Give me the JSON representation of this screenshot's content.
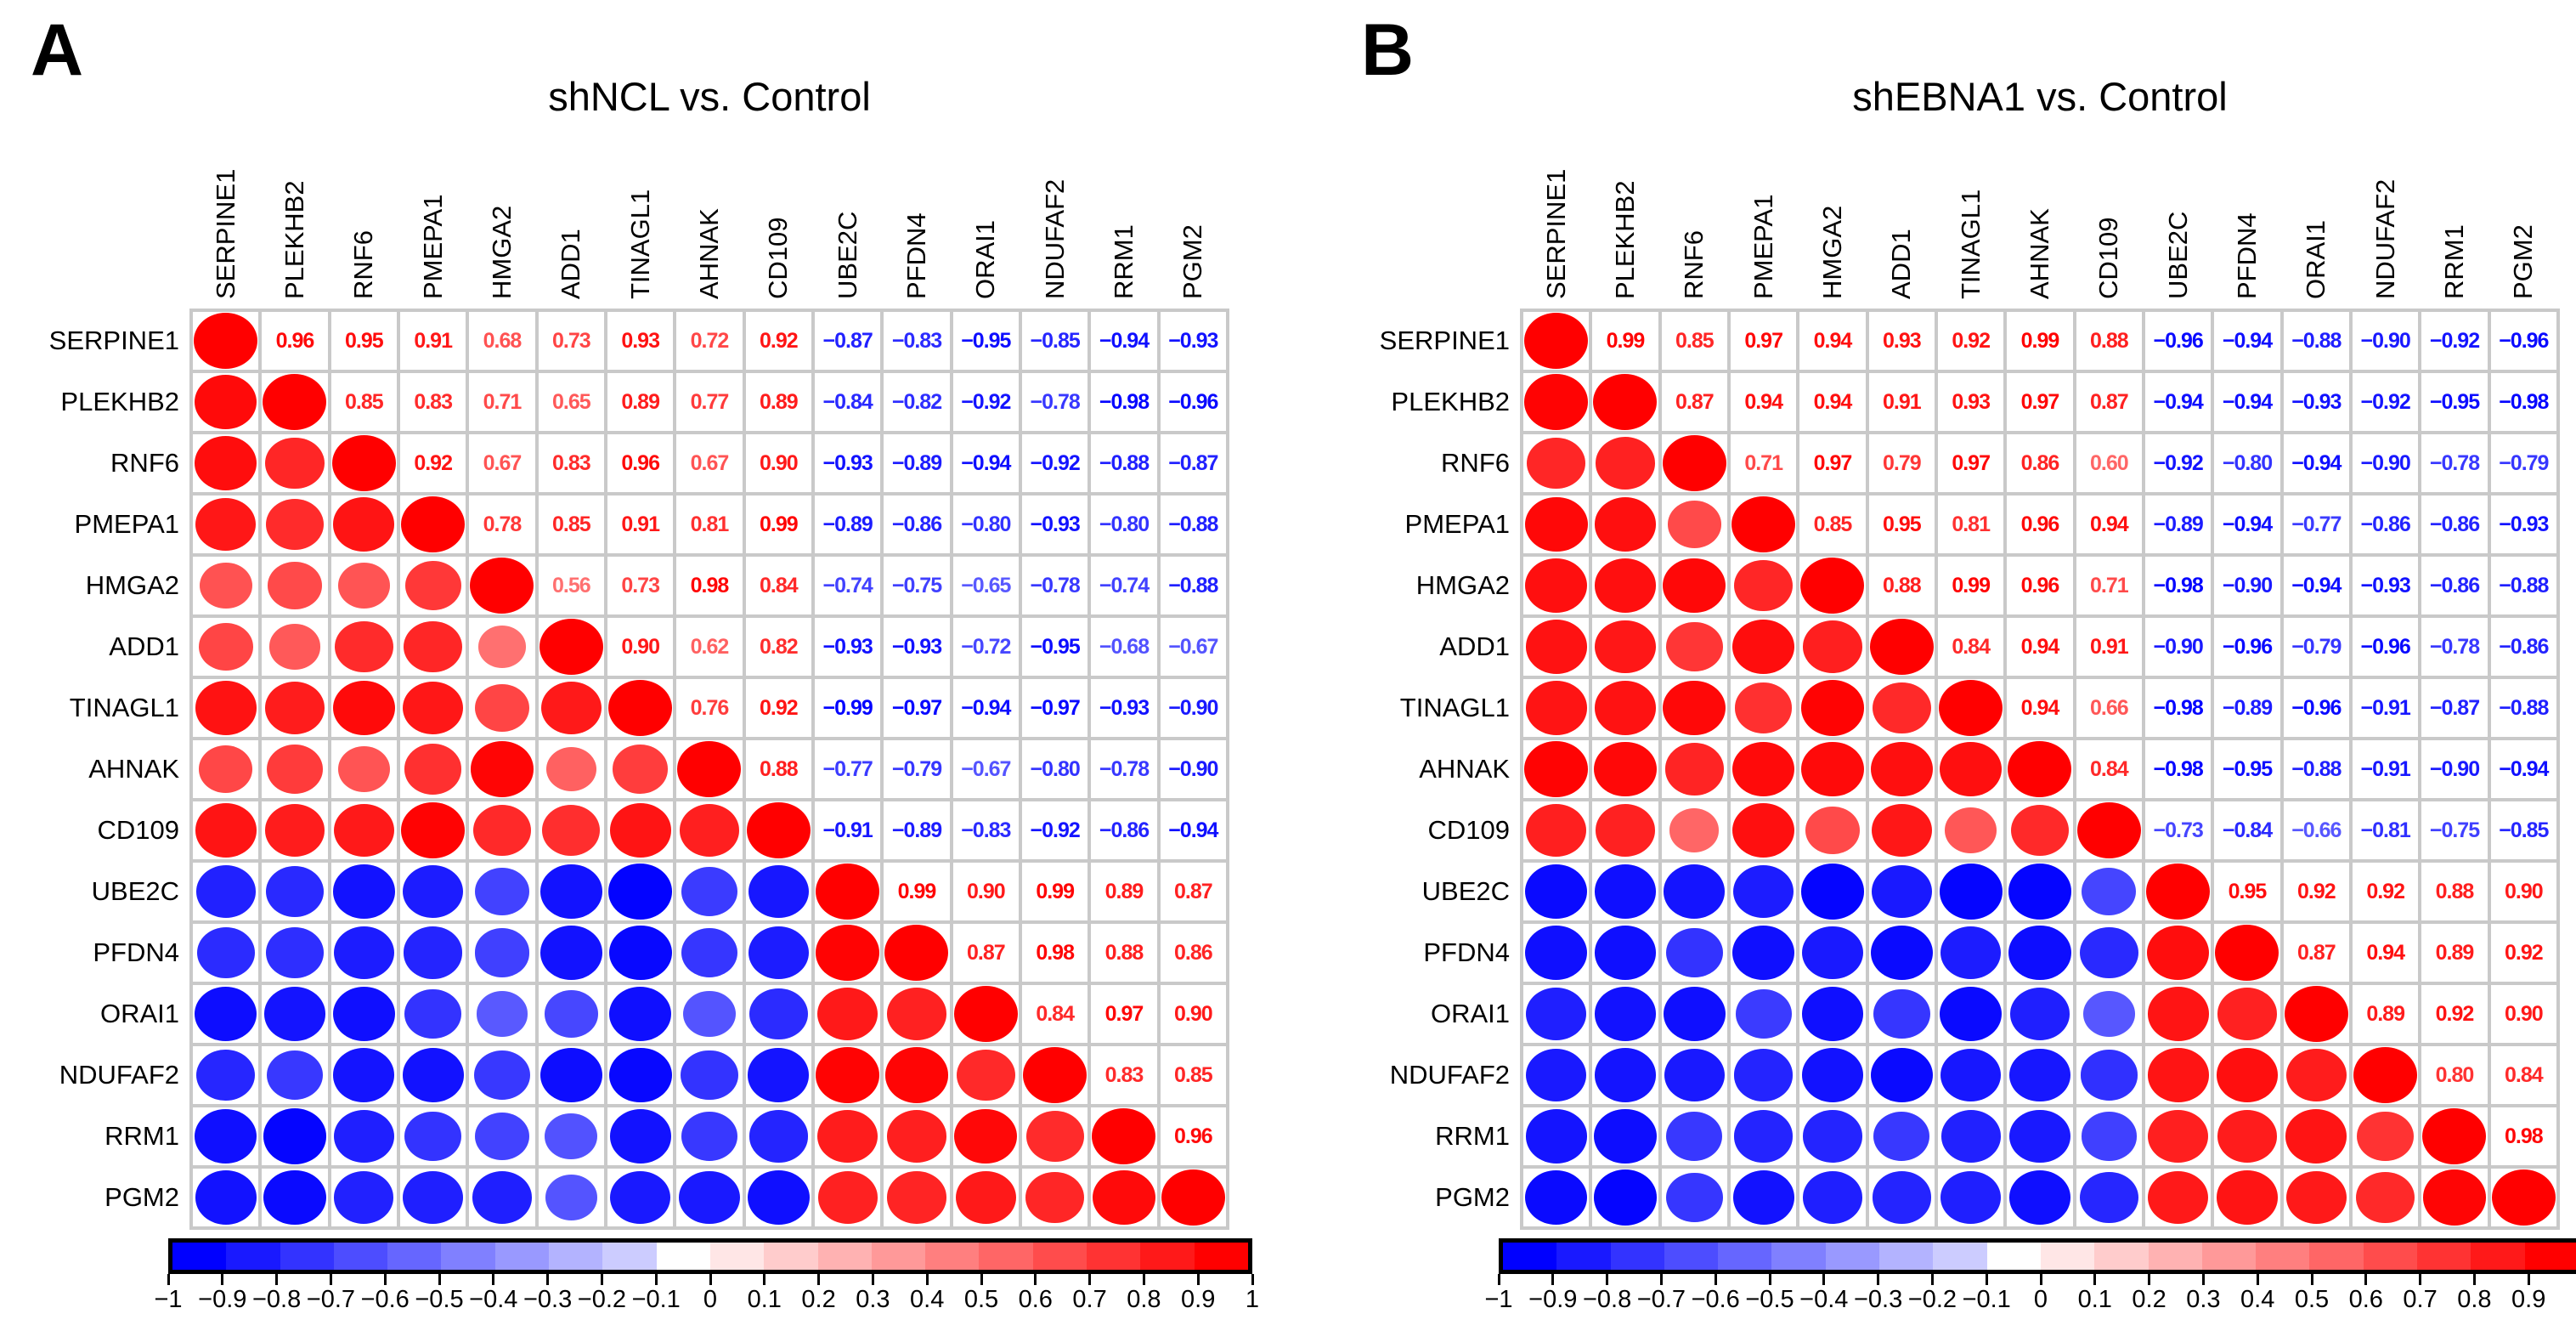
{
  "colors": {
    "positive_max": "#ff0000",
    "negative_max": "#0000ff",
    "zero": "#ffffff",
    "grid_line": "#c9c9c9",
    "text": "#000000",
    "background": "#ffffff"
  },
  "colorbar": {
    "min": -1,
    "max": 1,
    "step": 0.1,
    "segments": 20,
    "tick_labels": [
      "−1",
      "−0.9",
      "−0.8",
      "−0.7",
      "−0.6",
      "−0.5",
      "−0.4",
      "−0.3",
      "−0.2",
      "−0.1",
      "0",
      "0.1",
      "0.2",
      "0.3",
      "0.4",
      "0.5",
      "0.6",
      "0.7",
      "0.8",
      "0.9",
      "1"
    ]
  },
  "chart_data": [
    {
      "type": "heatmap",
      "subtype": "correlation-matrix",
      "panel_label": "A",
      "title": "shNCL vs. Control",
      "legend_position": "bottom",
      "value_range": [
        -1,
        1
      ],
      "labels": [
        "SERPINE1",
        "PLEKHB2",
        "RNF6",
        "PMEPA1",
        "HMGA2",
        "ADD1",
        "TINAGL1",
        "AHNAK",
        "CD109",
        "UBE2C",
        "PFDN4",
        "ORAI1",
        "NDUFAF2",
        "RRM1",
        "PGM2"
      ],
      "diagonal_value": 1,
      "upper_triangle": [
        [
          0.96,
          0.95,
          0.91,
          0.68,
          0.73,
          0.93,
          0.72,
          0.92,
          -0.87,
          -0.83,
          -0.95,
          -0.85,
          -0.94,
          -0.93
        ],
        [
          0.85,
          0.83,
          0.71,
          0.65,
          0.89,
          0.77,
          0.89,
          -0.84,
          -0.82,
          -0.92,
          -0.78,
          -0.98,
          -0.96
        ],
        [
          0.92,
          0.67,
          0.83,
          0.96,
          0.67,
          0.9,
          -0.93,
          -0.89,
          -0.94,
          -0.92,
          -0.88,
          -0.87
        ],
        [
          0.78,
          0.85,
          0.91,
          0.81,
          0.99,
          -0.89,
          -0.86,
          -0.8,
          -0.93,
          -0.8,
          -0.88
        ],
        [
          0.56,
          0.73,
          0.98,
          0.84,
          -0.74,
          -0.75,
          -0.65,
          -0.78,
          -0.74,
          -0.88
        ],
        [
          0.9,
          0.62,
          0.82,
          -0.93,
          -0.93,
          -0.72,
          -0.95,
          -0.68,
          -0.67
        ],
        [
          0.76,
          0.92,
          -0.99,
          -0.97,
          -0.94,
          -0.97,
          -0.93,
          -0.9
        ],
        [
          0.88,
          -0.77,
          -0.79,
          -0.67,
          -0.8,
          -0.78,
          -0.9
        ],
        [
          -0.91,
          -0.89,
          -0.83,
          -0.92,
          -0.86,
          -0.94
        ],
        [
          0.99,
          0.9,
          0.99,
          0.89,
          0.87
        ],
        [
          0.87,
          0.98,
          0.88,
          0.86
        ],
        [
          0.84,
          0.97,
          0.9
        ],
        [
          0.83,
          0.85
        ],
        [
          0.96
        ]
      ]
    },
    {
      "type": "heatmap",
      "subtype": "correlation-matrix",
      "panel_label": "B",
      "title": "shEBNA1 vs. Control",
      "legend_position": "bottom",
      "value_range": [
        -1,
        1
      ],
      "labels": [
        "SERPINE1",
        "PLEKHB2",
        "RNF6",
        "PMEPA1",
        "HMGA2",
        "ADD1",
        "TINAGL1",
        "AHNAK",
        "CD109",
        "UBE2C",
        "PFDN4",
        "ORAI1",
        "NDUFAF2",
        "RRM1",
        "PGM2"
      ],
      "diagonal_value": 1,
      "upper_triangle": [
        [
          0.99,
          0.85,
          0.97,
          0.94,
          0.93,
          0.92,
          0.99,
          0.88,
          -0.96,
          -0.94,
          -0.88,
          -0.9,
          -0.92,
          -0.96
        ],
        [
          0.87,
          0.94,
          0.94,
          0.91,
          0.93,
          0.97,
          0.87,
          -0.94,
          -0.94,
          -0.93,
          -0.92,
          -0.95,
          -0.98
        ],
        [
          0.71,
          0.97,
          0.79,
          0.97,
          0.86,
          0.6,
          -0.92,
          -0.8,
          -0.94,
          -0.9,
          -0.78,
          -0.79
        ],
        [
          0.85,
          0.95,
          0.81,
          0.96,
          0.94,
          -0.89,
          -0.94,
          -0.77,
          -0.86,
          -0.86,
          -0.93
        ],
        [
          0.88,
          0.99,
          0.96,
          0.71,
          -0.98,
          -0.9,
          -0.94,
          -0.93,
          -0.86,
          -0.88
        ],
        [
          0.84,
          0.94,
          0.91,
          -0.9,
          -0.96,
          -0.79,
          -0.96,
          -0.78,
          -0.86
        ],
        [
          0.94,
          0.66,
          -0.98,
          -0.89,
          -0.96,
          -0.91,
          -0.87,
          -0.88
        ],
        [
          0.84,
          -0.98,
          -0.95,
          -0.88,
          -0.91,
          -0.9,
          -0.94
        ],
        [
          -0.73,
          -0.84,
          -0.66,
          -0.81,
          -0.75,
          -0.85
        ],
        [
          0.95,
          0.92,
          0.92,
          0.88,
          0.9
        ],
        [
          0.87,
          0.94,
          0.89,
          0.92
        ],
        [
          0.89,
          0.92,
          0.9
        ],
        [
          0.8,
          0.84
        ],
        [
          0.98
        ]
      ]
    }
  ]
}
